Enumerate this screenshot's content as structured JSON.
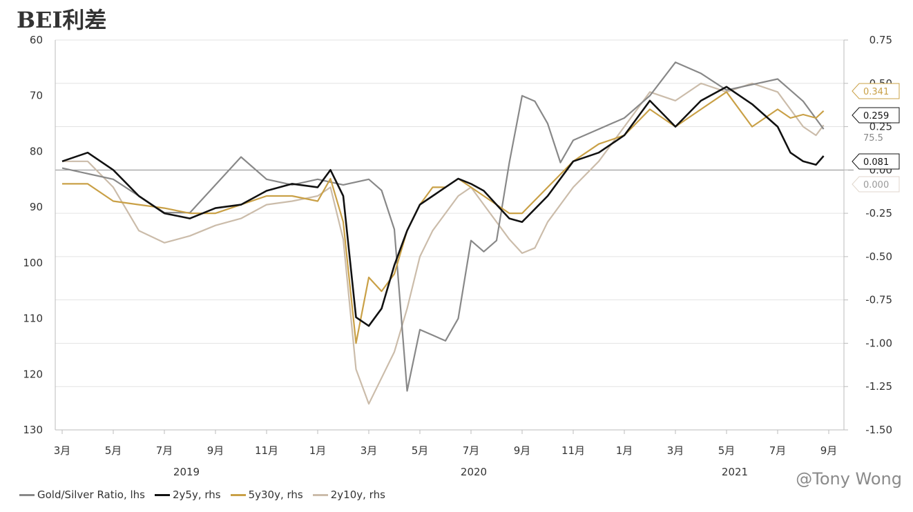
{
  "chart_data": {
    "type": "line",
    "title": "BEI利差",
    "left_axis": {
      "ticks": [
        "60",
        "70",
        "80",
        "90",
        "100",
        "110",
        "120",
        "130"
      ],
      "range": [
        60,
        130
      ],
      "inverted": true
    },
    "right_axis": {
      "ticks": [
        "0.75",
        "0.50",
        "0.25",
        "0.00",
        "-0.25",
        "-0.50",
        "-0.75",
        "-1.00",
        "-1.25",
        "-1.50"
      ],
      "range": [
        -1.5,
        0.75
      ]
    },
    "x_ticks": [
      "3月",
      "5月",
      "7月",
      "9月",
      "11月",
      "1月",
      "3月",
      "5月",
      "7月",
      "9月",
      "11月",
      "1月",
      "3月",
      "5月",
      "7月",
      "9月"
    ],
    "years": [
      "2019",
      "2020",
      "2021"
    ],
    "grid": "horizontal",
    "series": [
      {
        "name": "Gold/Silver Ratio, lhs",
        "axis": "left",
        "color": "#888888",
        "x": [
          0,
          0.5,
          1,
          1.5,
          2,
          2.5,
          3,
          3.5,
          4,
          4.5,
          5,
          5.5,
          6,
          6.25,
          6.5,
          6.75,
          7,
          7.25,
          7.5,
          7.75,
          8,
          8.25,
          8.5,
          8.75,
          9,
          9.25,
          9.5,
          9.75,
          10,
          10.5,
          11,
          11.5,
          12,
          12.5,
          13,
          13.5,
          14,
          14.5,
          14.9
        ],
        "values": [
          83,
          84,
          85,
          88,
          91,
          91,
          86,
          81,
          85,
          86,
          85,
          86,
          85,
          87,
          94,
          123,
          112,
          113,
          114,
          110,
          96,
          98,
          96,
          82,
          70,
          71,
          75,
          82,
          78,
          76,
          74,
          70,
          64,
          66,
          69,
          68,
          67,
          71,
          76
        ]
      },
      {
        "name": "2y5y, rhs",
        "axis": "right",
        "color": "#111111",
        "x": [
          0,
          0.5,
          1,
          1.5,
          2,
          2.5,
          3,
          3.5,
          4,
          4.5,
          5,
          5.25,
          5.5,
          5.75,
          6,
          6.25,
          6.5,
          6.75,
          7,
          7.25,
          7.5,
          7.75,
          8,
          8.25,
          8.5,
          8.75,
          9,
          9.5,
          10,
          10.5,
          11,
          11.5,
          12,
          12.5,
          13,
          13.5,
          14,
          14.25,
          14.5,
          14.75,
          14.9
        ],
        "values": [
          0.05,
          0.1,
          0.0,
          -0.15,
          -0.25,
          -0.28,
          -0.22,
          -0.2,
          -0.12,
          -0.08,
          -0.1,
          0.0,
          -0.15,
          -0.85,
          -0.9,
          -0.8,
          -0.55,
          -0.35,
          -0.2,
          -0.15,
          -0.1,
          -0.05,
          -0.08,
          -0.12,
          -0.2,
          -0.28,
          -0.3,
          -0.15,
          0.05,
          0.1,
          0.2,
          0.4,
          0.25,
          0.4,
          0.48,
          0.38,
          0.25,
          0.1,
          0.05,
          0.03,
          0.081
        ]
      },
      {
        "name": "5y30y, rhs",
        "axis": "right",
        "color": "#c9a046",
        "x": [
          0,
          0.5,
          1,
          1.5,
          2,
          2.5,
          3,
          3.5,
          4,
          4.5,
          5,
          5.25,
          5.5,
          5.75,
          6,
          6.25,
          6.5,
          6.75,
          7,
          7.25,
          7.5,
          7.75,
          8,
          8.25,
          8.5,
          8.75,
          9,
          9.5,
          10,
          10.5,
          11,
          11.5,
          12,
          12.5,
          13,
          13.5,
          14,
          14.25,
          14.5,
          14.75,
          14.9
        ],
        "values": [
          -0.08,
          -0.08,
          -0.18,
          -0.2,
          -0.22,
          -0.25,
          -0.25,
          -0.2,
          -0.15,
          -0.15,
          -0.18,
          -0.05,
          -0.3,
          -1.0,
          -0.62,
          -0.7,
          -0.6,
          -0.35,
          -0.2,
          -0.1,
          -0.1,
          -0.05,
          -0.1,
          -0.15,
          -0.2,
          -0.25,
          -0.25,
          -0.1,
          0.05,
          0.15,
          0.2,
          0.35,
          0.25,
          0.35,
          0.45,
          0.25,
          0.35,
          0.3,
          0.32,
          0.3,
          0.341
        ]
      },
      {
        "name": "2y10y, rhs",
        "axis": "right",
        "color": "#cbbcaa",
        "x": [
          0,
          0.5,
          1,
          1.5,
          2,
          2.5,
          3,
          3.5,
          4,
          4.5,
          5,
          5.25,
          5.5,
          5.75,
          6,
          6.25,
          6.5,
          6.75,
          7,
          7.25,
          7.5,
          7.75,
          8,
          8.25,
          8.5,
          8.75,
          9,
          9.25,
          9.5,
          10,
          10.5,
          11,
          11.5,
          12,
          12.5,
          13,
          13.5,
          14,
          14.25,
          14.5,
          14.75,
          14.9
        ],
        "values": [
          0.05,
          0.05,
          -0.1,
          -0.35,
          -0.42,
          -0.38,
          -0.32,
          -0.28,
          -0.2,
          -0.18,
          -0.15,
          -0.1,
          -0.4,
          -1.15,
          -1.35,
          -1.2,
          -1.05,
          -0.8,
          -0.5,
          -0.35,
          -0.25,
          -0.15,
          -0.1,
          -0.2,
          -0.3,
          -0.4,
          -0.48,
          -0.45,
          -0.3,
          -0.1,
          0.05,
          0.25,
          0.45,
          0.4,
          0.5,
          0.45,
          0.5,
          0.45,
          0.35,
          0.25,
          0.2,
          0.259
        ]
      }
    ],
    "end_labels": [
      {
        "text": "0.341",
        "color": "#c9a046"
      },
      {
        "text": "0.259",
        "color": "#111111"
      },
      {
        "text": "75.5",
        "color": "#888888"
      },
      {
        "text": "0.081",
        "color": "#111111"
      },
      {
        "text": "0.000",
        "color": "#999999"
      }
    ],
    "watermark": "@Tony Wong"
  }
}
